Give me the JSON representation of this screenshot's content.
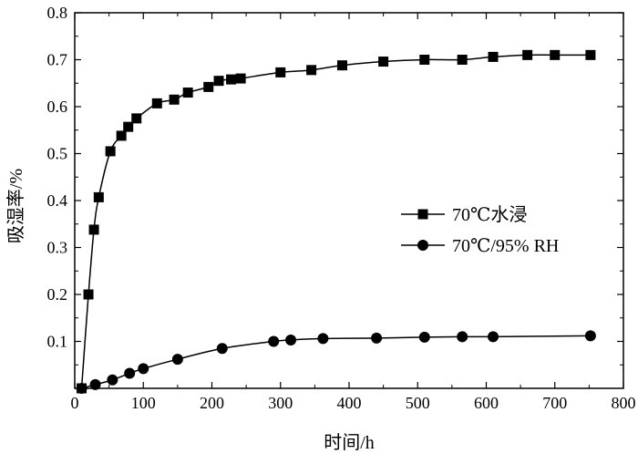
{
  "chart_data": {
    "type": "line",
    "title": "",
    "xlabel": "时间/h",
    "ylabel": "吸湿率/%",
    "xlim": [
      0,
      800
    ],
    "ylim": [
      0,
      0.8
    ],
    "xticks": [
      0,
      100,
      200,
      300,
      400,
      500,
      600,
      700,
      800
    ],
    "yticks": [
      0.1,
      0.2,
      0.3,
      0.4,
      0.5,
      0.6,
      0.7,
      0.8
    ],
    "xtick_labels": [
      "0",
      "100",
      "200",
      "300",
      "400",
      "500",
      "600",
      "700",
      "800"
    ],
    "ytick_labels": [
      "0.1",
      "0.2",
      "0.3",
      "0.4",
      "0.5",
      "0.6",
      "0.7",
      "0.8"
    ],
    "grid": false,
    "legend_position": "center-right",
    "series": [
      {
        "name": "70℃水浸",
        "marker": "square",
        "color": "#000000",
        "x": [
          10,
          20,
          28,
          35,
          52,
          68,
          78,
          90,
          120,
          145,
          165,
          195,
          210,
          228,
          242,
          300,
          345,
          390,
          450,
          510,
          565,
          610,
          660,
          700,
          752
        ],
        "y": [
          0.0,
          0.2,
          0.338,
          0.407,
          0.505,
          0.538,
          0.557,
          0.575,
          0.607,
          0.615,
          0.63,
          0.642,
          0.655,
          0.658,
          0.66,
          0.673,
          0.678,
          0.688,
          0.696,
          0.7,
          0.7,
          0.706,
          0.71,
          0.71,
          0.71
        ]
      },
      {
        "name": "70℃/95% RH",
        "marker": "circle",
        "color": "#000000",
        "x": [
          10,
          30,
          55,
          80,
          100,
          150,
          215,
          290,
          315,
          362,
          440,
          510,
          565,
          610,
          752
        ],
        "y": [
          0.0,
          0.008,
          0.018,
          0.032,
          0.042,
          0.062,
          0.085,
          0.1,
          0.103,
          0.106,
          0.107,
          0.109,
          0.11,
          0.11,
          0.112
        ]
      }
    ]
  }
}
